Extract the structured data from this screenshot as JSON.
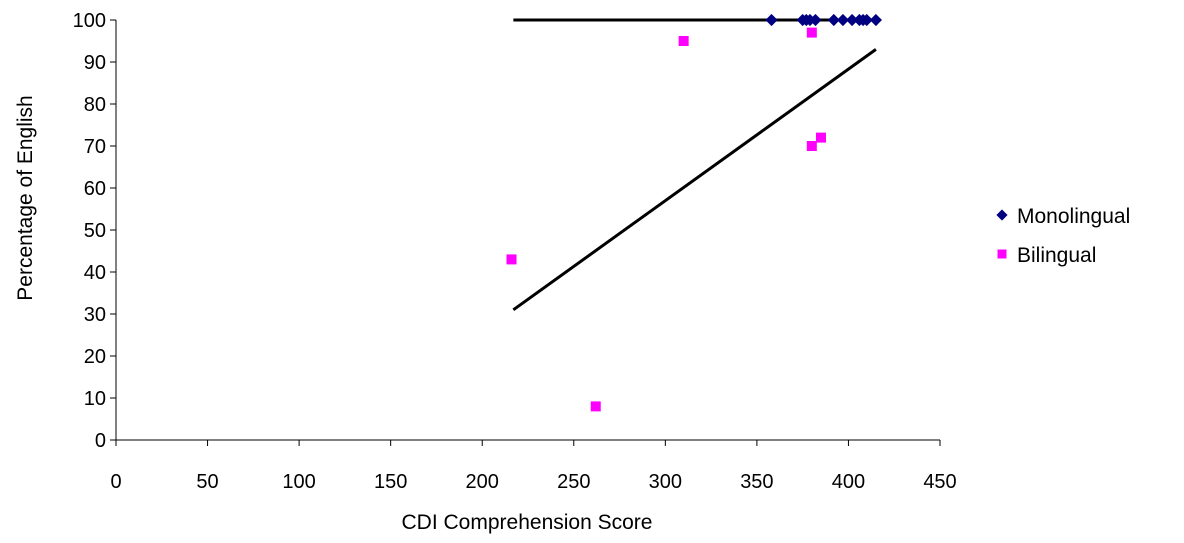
{
  "chart_data": {
    "type": "scatter",
    "title": "",
    "xlabel": "CDI Comprehension Score",
    "ylabel": "Percentage of English",
    "xlim": [
      0,
      450
    ],
    "ylim": [
      0,
      100
    ],
    "x_ticks": [
      0,
      50,
      100,
      150,
      200,
      250,
      300,
      350,
      400,
      450
    ],
    "y_ticks": [
      0,
      10,
      20,
      30,
      40,
      50,
      60,
      70,
      80,
      90,
      100
    ],
    "grid": false,
    "legend_position": "right",
    "series": [
      {
        "name": "Monolingual",
        "marker": "diamond",
        "color": "#000080",
        "points": [
          [
            358,
            100
          ],
          [
            375,
            100
          ],
          [
            377,
            100
          ],
          [
            379,
            100
          ],
          [
            382,
            100
          ],
          [
            392,
            100
          ],
          [
            397,
            100
          ],
          [
            402,
            100
          ],
          [
            406,
            100
          ],
          [
            408,
            100
          ],
          [
            410,
            100
          ],
          [
            415,
            100
          ]
        ],
        "trendline": [
          [
            217,
            100
          ],
          [
            415,
            100
          ]
        ]
      },
      {
        "name": "Bilingual",
        "marker": "square",
        "color": "#FF00FF",
        "points": [
          [
            216,
            43
          ],
          [
            262,
            8
          ],
          [
            310,
            95
          ],
          [
            380,
            97
          ],
          [
            380,
            70
          ],
          [
            385,
            72
          ]
        ],
        "trendline": [
          [
            217,
            31
          ],
          [
            415,
            93
          ]
        ]
      }
    ]
  }
}
